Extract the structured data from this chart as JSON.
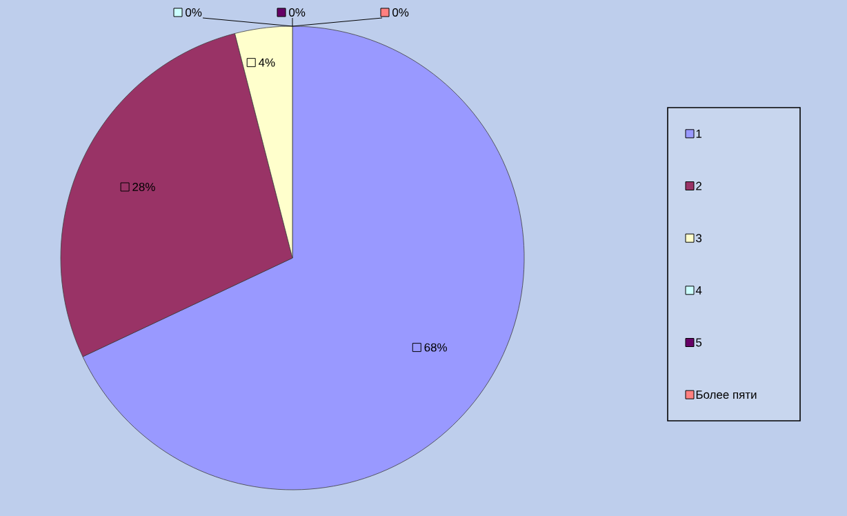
{
  "chart_data": {
    "type": "pie",
    "categories": [
      "1",
      "2",
      "3",
      "4",
      "5",
      "Более пяти"
    ],
    "values": [
      68,
      28,
      4,
      0,
      0,
      0
    ],
    "colors": [
      "#9999ff",
      "#993366",
      "#ffffcc",
      "#ccffff",
      "#660066",
      "#ff8080"
    ],
    "value_labels": [
      "68%",
      "28%",
      "4%",
      "0%",
      "0%",
      "0%"
    ],
    "legend": "right"
  }
}
